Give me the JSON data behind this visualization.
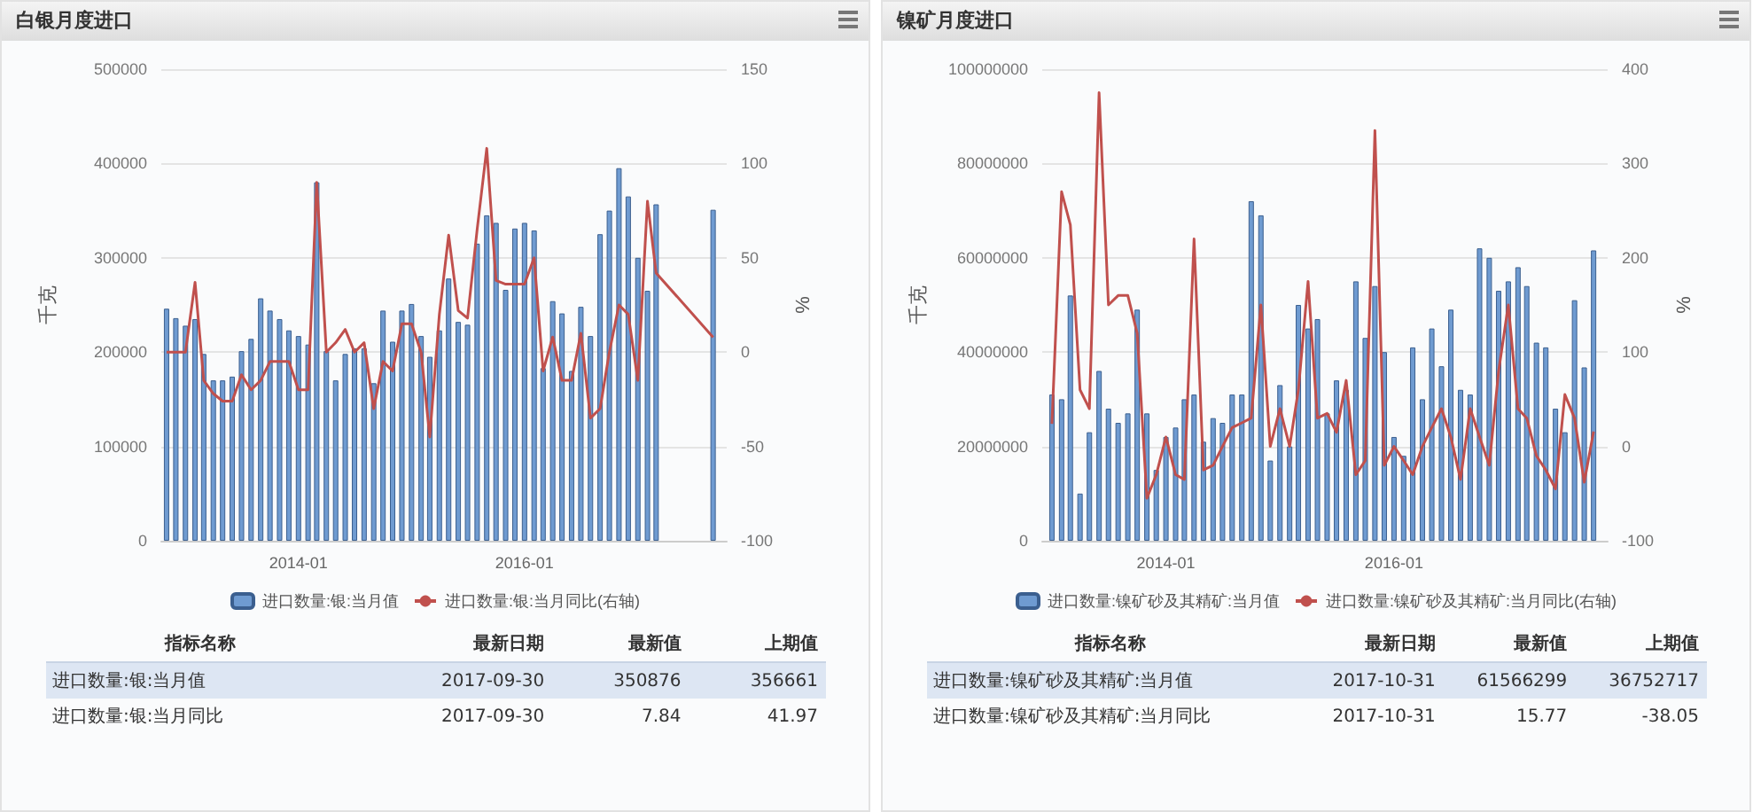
{
  "chart_data": [
    {
      "type": "bar",
      "title": "白银月度进口",
      "ylabel": "千克",
      "y2label": "%",
      "legend": "bottom",
      "grid": "y",
      "marker": "none",
      "x": [
        "2012-11",
        "2012-12",
        "2013-01",
        "2013-02",
        "2013-03",
        "2013-04",
        "2013-05",
        "2013-06",
        "2013-07",
        "2013-08",
        "2013-09",
        "2013-10",
        "2013-11",
        "2013-12",
        "2014-01",
        "2014-02",
        "2014-03",
        "2014-04",
        "2014-05",
        "2014-06",
        "2014-07",
        "2014-08",
        "2014-09",
        "2014-10",
        "2014-11",
        "2014-12",
        "2015-01",
        "2015-02",
        "2015-03",
        "2015-04",
        "2015-05",
        "2015-06",
        "2015-07",
        "2015-08",
        "2015-09",
        "2015-10",
        "2015-11",
        "2015-12",
        "2016-01",
        "2016-02",
        "2016-03",
        "2016-04",
        "2016-05",
        "2016-06",
        "2016-07",
        "2016-08",
        "2016-09",
        "2016-10",
        "2016-11",
        "2016-12",
        "2017-01",
        "2017-02",
        "2017-03",
        "2017-09"
      ],
      "xlim": [
        "2012-10-15",
        "2017-10-15"
      ],
      "xticks": [
        "2014-01",
        "2016-01"
      ],
      "ylim": [
        0,
        500000
      ],
      "yticks": [
        0,
        100000,
        200000,
        300000,
        400000,
        500000
      ],
      "y2lim": [
        -100,
        150
      ],
      "y2ticks": [
        -100,
        -50,
        0,
        50,
        100,
        150
      ],
      "series": [
        {
          "name": "进口数量:银:当月值",
          "color": "#6f9bd1",
          "values": [
            246000,
            236000,
            228000,
            235000,
            198000,
            170000,
            170000,
            174000,
            201000,
            214000,
            257000,
            244000,
            235000,
            223000,
            217000,
            208000,
            380000,
            201000,
            170000,
            198000,
            204000,
            204000,
            167000,
            244000,
            211000,
            244000,
            251000,
            217000,
            195000,
            223000,
            278000,
            232000,
            229000,
            315000,
            345000,
            337000,
            266000,
            331000,
            337000,
            329000,
            183000,
            254000,
            241000,
            180000,
            248000,
            217000,
            325000,
            350000,
            395000,
            365000,
            300000,
            265000,
            356661,
            350876
          ]
        },
        {
          "name": "进口数量:银:当月同比(右轴)",
          "type": "line",
          "axis": "y2",
          "color": "#c0504d",
          "values": [
            0,
            0,
            0,
            37,
            -15,
            -22,
            -26,
            -26,
            -12,
            -20,
            -15,
            -5,
            -5,
            -5,
            -20,
            -20,
            90,
            0,
            5,
            12,
            0,
            5,
            -30,
            -5,
            -10,
            15,
            15,
            0,
            -45,
            20,
            62,
            22,
            18,
            65,
            108,
            38,
            36,
            36,
            36,
            50,
            -10,
            8,
            -15,
            -15,
            10,
            -35,
            -30,
            0,
            25,
            20,
            -15,
            80,
            41.97,
            7.84
          ]
        }
      ],
      "annotations": [
        "指标名称",
        "最新日期",
        "最新值",
        "上期值",
        "进口数量:银:当月值",
        "2017-09-30",
        "350876",
        "356661",
        "进口数量:银:当月同比",
        "2017-09-30",
        "7.84",
        "41.97"
      ]
    },
    {
      "type": "bar",
      "title": "镍矿月度进口",
      "ylabel": "千克",
      "y2label": "%",
      "legend": "bottom",
      "grid": "y",
      "marker": "none",
      "x": [
        "2013-01",
        "2013-02",
        "2013-03",
        "2013-04",
        "2013-05",
        "2013-06",
        "2013-07",
        "2013-08",
        "2013-09",
        "2013-10",
        "2013-11",
        "2013-12",
        "2014-01",
        "2014-02",
        "2014-03",
        "2014-04",
        "2014-05",
        "2014-06",
        "2014-07",
        "2014-08",
        "2014-09",
        "2014-10",
        "2014-11",
        "2014-12",
        "2015-01",
        "2015-02",
        "2015-03",
        "2015-04",
        "2015-05",
        "2015-06",
        "2015-07",
        "2015-08",
        "2015-09",
        "2015-10",
        "2015-11",
        "2015-12",
        "2016-01",
        "2016-02",
        "2016-03",
        "2016-04",
        "2016-05",
        "2016-06",
        "2016-07",
        "2016-08",
        "2016-09",
        "2016-10",
        "2016-11",
        "2016-12",
        "2017-01",
        "2017-02",
        "2017-03",
        "2017-04",
        "2017-05",
        "2017-06",
        "2017-07",
        "2017-08",
        "2017-09",
        "2017-10"
      ],
      "xlim": [
        "2012-12-01",
        "2017-11-15"
      ],
      "xticks": [
        "2014-01",
        "2016-01"
      ],
      "ylim": [
        0,
        100000000
      ],
      "yticks": [
        0,
        20000000,
        40000000,
        60000000,
        80000000,
        100000000
      ],
      "y2lim": [
        -100,
        400
      ],
      "y2ticks": [
        -100,
        0,
        100,
        200,
        300,
        400
      ],
      "series": [
        {
          "name": "进口数量:镍矿砂及其精矿:当月值",
          "color": "#6f9bd1",
          "values": [
            31000000,
            30000000,
            52000000,
            10000000,
            23000000,
            36000000,
            28000000,
            25000000,
            27000000,
            49000000,
            27000000,
            15000000,
            22000000,
            24000000,
            30000000,
            31000000,
            21000000,
            26000000,
            25000000,
            31000000,
            31000000,
            72000000,
            69000000,
            17000000,
            33000000,
            20000000,
            50000000,
            45000000,
            47000000,
            27000000,
            34000000,
            32000000,
            55000000,
            43000000,
            54000000,
            40000000,
            22000000,
            18000000,
            41000000,
            30000000,
            45000000,
            37000000,
            49000000,
            32000000,
            31000000,
            62000000,
            60000000,
            53000000,
            55000000,
            58000000,
            54000000,
            42000000,
            41000000,
            28000000,
            23000000,
            51000000,
            36752717,
            61566299
          ]
        },
        {
          "name": "进口数量:镍矿砂及其精矿:当月同比(右轴)",
          "type": "line",
          "axis": "y2",
          "color": "#c0504d",
          "values": [
            24,
            270,
            235,
            60,
            40,
            375,
            150,
            160,
            160,
            120,
            -55,
            -30,
            10,
            -30,
            -35,
            220,
            -25,
            -20,
            0,
            20,
            25,
            30,
            150,
            0,
            40,
            0,
            60,
            175,
            30,
            35,
            15,
            70,
            -30,
            -15,
            335,
            -20,
            0,
            -15,
            -30,
            0,
            20,
            40,
            10,
            -35,
            40,
            10,
            -20,
            80,
            150,
            40,
            30,
            -10,
            -25,
            -45,
            55,
            30,
            -38.05,
            15.77
          ]
        }
      ],
      "annotations": [
        "指标名称",
        "最新日期",
        "最新值",
        "上期值",
        "进口数量:镍矿砂及其精矿:当月值",
        "2017-10-31",
        "61566299",
        "36752717",
        "进口数量:镍矿砂及其精矿:当月同比",
        "2017-10-31",
        "15.77",
        "-38.05"
      ]
    }
  ]
}
